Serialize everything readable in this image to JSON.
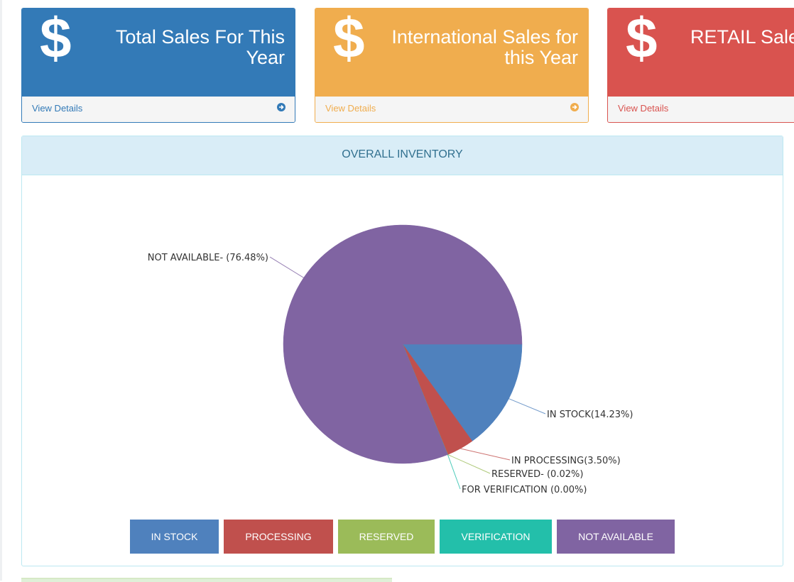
{
  "cards": [
    {
      "id": "blue",
      "icon": "dollar-icon",
      "symbol": "$",
      "title": "Total Sales For This Year",
      "link": "View Details",
      "color": "#337ab7"
    },
    {
      "id": "orange",
      "icon": "dollar-icon",
      "symbol": "$",
      "title": "International Sales for this Year",
      "link": "View Details",
      "color": "#f0ad4e"
    },
    {
      "id": "red",
      "icon": "dollar-icon",
      "symbol": "$",
      "title": "RETAIL Sale",
      "link": "View Details",
      "color": "#d9534f"
    }
  ],
  "inventory_panel": {
    "title": "OVERALL INVENTORY"
  },
  "chart_data": {
    "type": "pie",
    "slices": [
      {
        "label": "IN STOCK(14.23%)",
        "name": "IN STOCK",
        "value": 14.23,
        "color": "#4f81bd"
      },
      {
        "label": "IN PROCESSING(3.50%)",
        "name": "IN PROCESSING",
        "value": 3.5,
        "color": "#c0504d"
      },
      {
        "label": "RESERVED- (0.02%)",
        "name": "RESERVED",
        "value": 0.02,
        "color": "#9bbb59"
      },
      {
        "label": "FOR VERIFICATION (0.00%)",
        "name": "FOR VERIFICATION",
        "value": 0.0,
        "color": "#23bfaa"
      },
      {
        "label": "NOT AVAILABLE- (76.48%)",
        "name": "NOT AVAILABLE",
        "value": 76.48,
        "color": "#8064a2"
      }
    ]
  },
  "legend": [
    {
      "label": "IN STOCK",
      "color": "#4f81bd"
    },
    {
      "label": "PROCESSING",
      "color": "#c0504d"
    },
    {
      "label": "RESERVED",
      "color": "#9bbb59"
    },
    {
      "label": "VERIFICATION",
      "color": "#23bfaa"
    },
    {
      "label": "NOT AVAILABLE",
      "color": "#8064a2"
    }
  ]
}
